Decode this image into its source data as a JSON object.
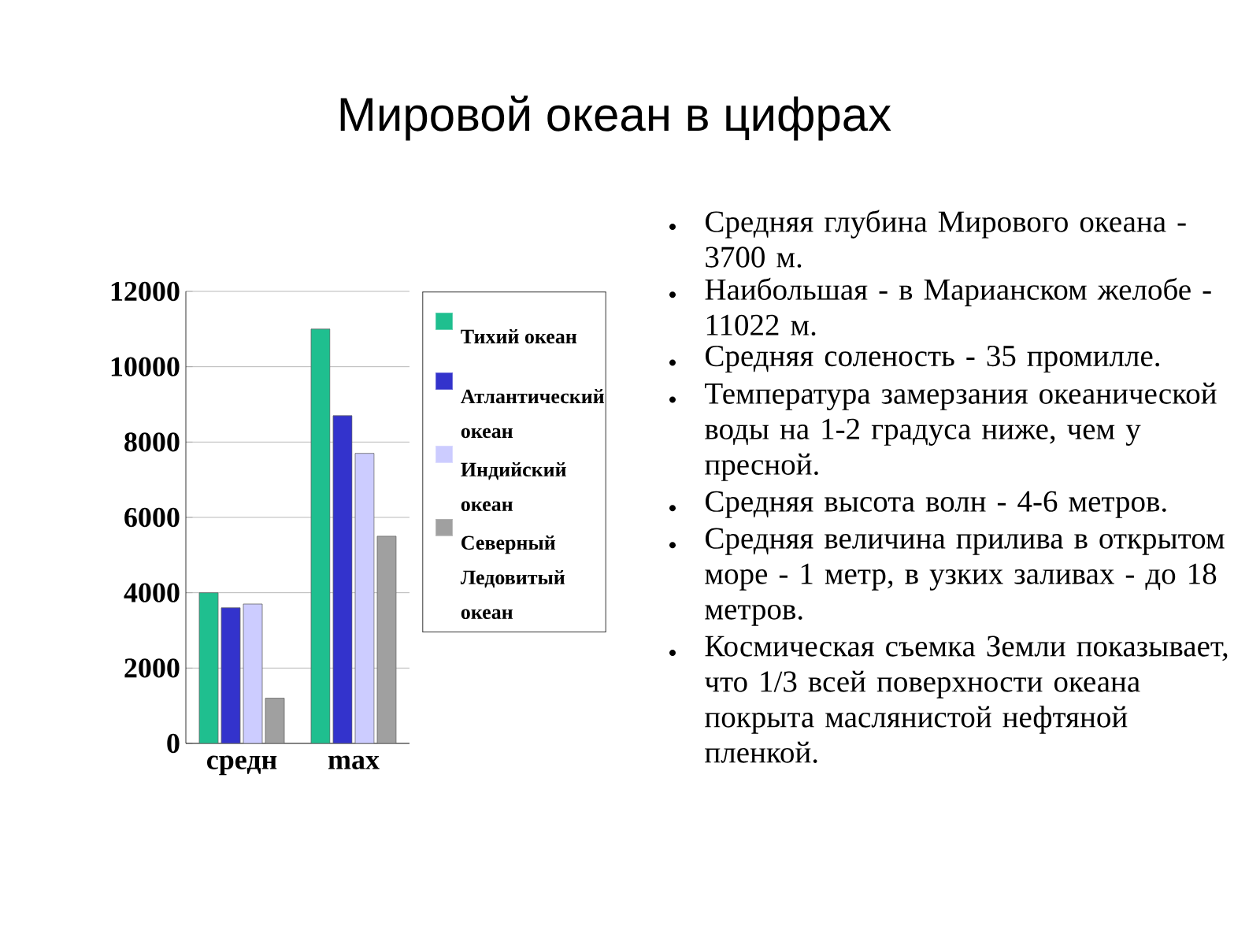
{
  "chart_data": {
    "type": "bar",
    "title": "Мировой океан в цифрах",
    "categories": [
      "средн",
      "max"
    ],
    "series": [
      {
        "name": "Тихий океан",
        "color": "#1fbf8f",
        "values": [
          4000,
          11000
        ]
      },
      {
        "name": "Атлантический океан",
        "color": "#3333cc",
        "values": [
          3600,
          8700
        ]
      },
      {
        "name": "Индийский океан",
        "color": "#ccccff",
        "values": [
          3700,
          7700
        ]
      },
      {
        "name": "Северный Ледовитый океан",
        "color": "#a0a0a0",
        "values": [
          1200,
          5500
        ]
      }
    ],
    "ylim": [
      0,
      12000
    ],
    "yticks": [
      0,
      2000,
      4000,
      6000,
      8000,
      10000,
      12000
    ],
    "grid": "y",
    "legend": "right",
    "annotations": [
      "Средняя глубина Мирового океана - 3700 м.",
      "Наибольшая - в Марианском желобе - 11022 м.",
      "Средняя соленость - 35 промилле.",
      "Температура замерзания океанической воды на 1-2 градуса ниже, чем у пресной.",
      "Средняя высота волн - 4-6 метров.",
      "Средняя величина прилива в открытом море - 1 метр, в узких заливах - до 18 метров.",
      "Космическая съемка Земли показывает, что 1/3 всей поверхности океана покрыта маслянистой нефтяной пленкой."
    ]
  }
}
